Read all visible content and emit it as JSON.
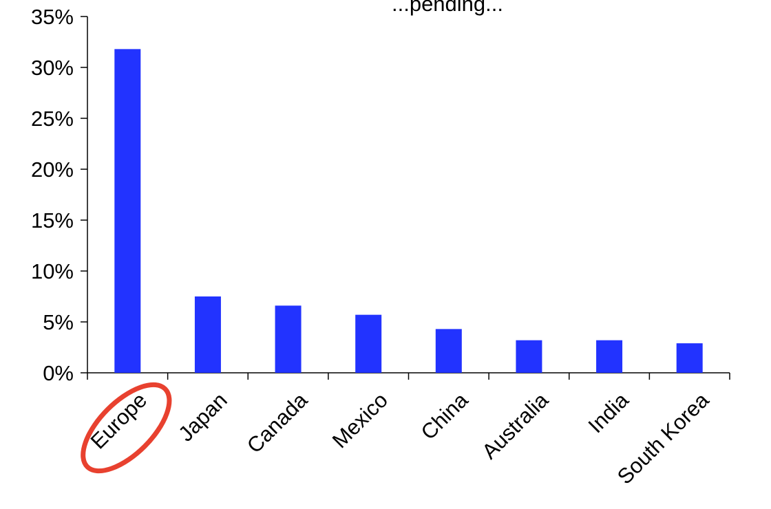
{
  "chart_data": {
    "type": "bar",
    "title": "...pending...",
    "xlabel": "",
    "ylabel": "",
    "categories": [
      "Europe",
      "Japan",
      "Canada",
      "Mexico",
      "China",
      "Australia",
      "India",
      "South Korea"
    ],
    "values": [
      31.8,
      7.5,
      6.6,
      5.7,
      4.3,
      3.2,
      3.2,
      2.9
    ],
    "ylim": [
      0,
      35
    ],
    "yticks": [
      0,
      5,
      10,
      15,
      20,
      25,
      30,
      35
    ],
    "ytick_labels": [
      "0%",
      "5%",
      "10%",
      "15%",
      "20%",
      "25%",
      "30%",
      "35%"
    ],
    "grid": false,
    "legend": "none",
    "bar_color": "#2233FF",
    "annotations": [
      {
        "type": "circle-highlight",
        "target": "Europe",
        "color": "#E8412F"
      }
    ]
  }
}
